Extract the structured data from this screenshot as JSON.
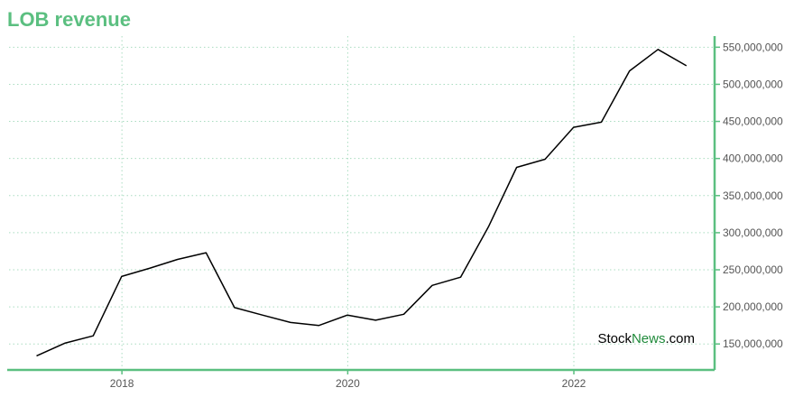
{
  "colors": {
    "accent": "#5bbf80",
    "grid": "#a9dcc0",
    "line": "#000000",
    "news_green": "#1f8a3a"
  },
  "chart_data": {
    "type": "line",
    "title": "LOB revenue",
    "xlabel": "",
    "ylabel": "",
    "grid": true,
    "x_ticks": [
      "2018",
      "2020",
      "2022"
    ],
    "y_ticks": [
      "150,000,000",
      "200,000,000",
      "250,000,000",
      "300,000,000",
      "350,000,000",
      "400,000,000",
      "450,000,000",
      "500,000,000",
      "550,000,000"
    ],
    "ylim": [
      115000000,
      565000000
    ],
    "xlim": [
      "2017-01-01",
      "2023-04-01"
    ],
    "series": [
      {
        "x": [
          "2017-03-31",
          "2017-06-30",
          "2017-09-30",
          "2017-12-31",
          "2018-03-31",
          "2018-06-30",
          "2018-09-30",
          "2018-12-31",
          "2019-03-31",
          "2019-06-30",
          "2019-09-30",
          "2019-12-31",
          "2020-03-31",
          "2020-06-30",
          "2020-09-30",
          "2020-12-31",
          "2021-03-31",
          "2021-06-30",
          "2021-09-30",
          "2021-12-31",
          "2022-03-31",
          "2022-06-30",
          "2022-09-30",
          "2022-12-31"
        ],
        "values": [
          134000000,
          151000000,
          161000000,
          241000000,
          252000000,
          264000000,
          273000000,
          199000000,
          189000000,
          179000000,
          175000000,
          189000000,
          182000000,
          190000000,
          229000000,
          240000000,
          308000000,
          388000000,
          399000000,
          442000000,
          449000000,
          518000000,
          547000000,
          525000000
        ]
      }
    ]
  },
  "watermark": {
    "stock": "Stock",
    "news": "News",
    "tld": ".com"
  }
}
